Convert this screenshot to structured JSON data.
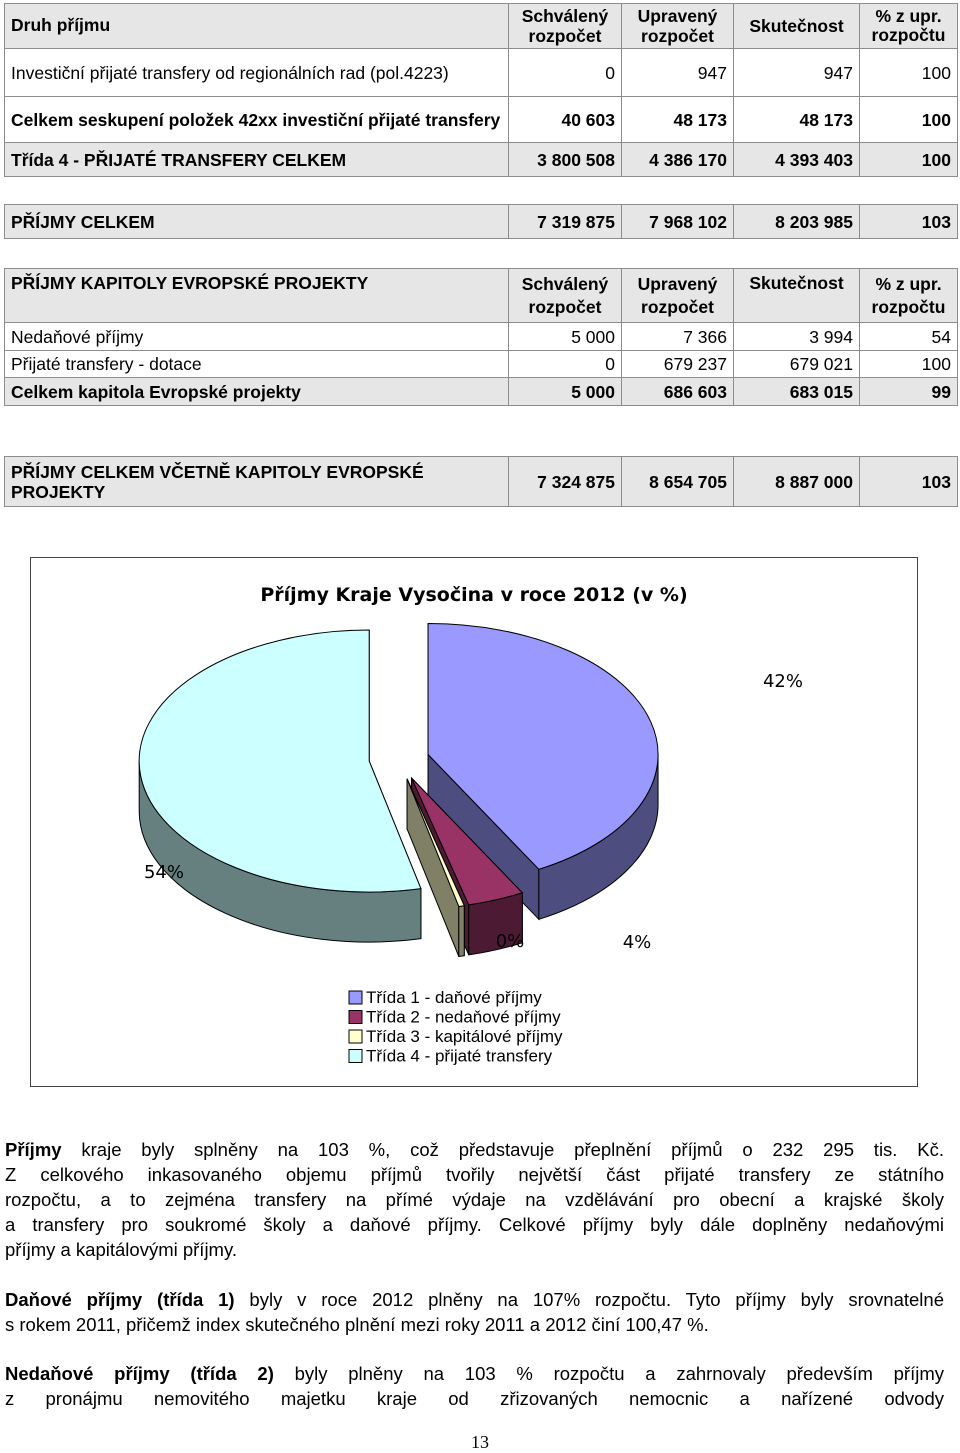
{
  "table1": {
    "head": {
      "label": "Druh příjmu",
      "c2": "Schválený rozpočet",
      "c3": "Upravený rozpočet",
      "c4": "Skutečnost",
      "c5": "% z upr. rozpočtu"
    },
    "rows": [
      {
        "label": "Investiční přijaté transfery od regionálních rad (pol.4223)",
        "c2": "0",
        "c3": "947",
        "c4": "947",
        "c5": "100"
      },
      {
        "label": "Celkem seskupení položek 42xx investiční přijaté transfery",
        "c2": "40 603",
        "c3": "48 173",
        "c4": "48 173",
        "c5": "100"
      },
      {
        "label": "Třída 4 - PŘIJATÉ TRANSFERY CELKEM",
        "c2": "3 800 508",
        "c3": "4 386 170",
        "c4": "4 393 403",
        "c5": "100"
      }
    ]
  },
  "table2": {
    "label": "PŘÍJMY CELKEM",
    "c2": "7 319 875",
    "c3": "7 968 102",
    "c4": "8 203 985",
    "c5": "103"
  },
  "table3": {
    "head": {
      "label": "PŘÍJMY KAPITOLY EVROPSKÉ PROJEKTY",
      "c2": "Schválený rozpočet",
      "c3": "Upravený rozpočet",
      "c4": "Skutečnost",
      "c5": "% z upr. rozpočtu"
    },
    "rows": [
      {
        "label": "Nedaňové příjmy",
        "c2": "5 000",
        "c3": "7 366",
        "c4": "3 994",
        "c5": "54"
      },
      {
        "label": "Přijaté transfery - dotace",
        "c2": "0",
        "c3": "679 237",
        "c4": "679 021",
        "c5": "100"
      },
      {
        "label": "Celkem kapitola Evropské projekty",
        "c2": "5 000",
        "c3": "686 603",
        "c4": "683 015",
        "c5": "99"
      }
    ]
  },
  "table4": {
    "label": "PŘÍJMY CELKEM VČETNĚ KAPITOLY EVROPSKÉ PROJEKTY",
    "c2": "7 324 875",
    "c3": "8 654 705",
    "c4": "8 887 000",
    "c5": "103"
  },
  "chart_data": {
    "type": "pie",
    "title": "Příjmy Kraje Vysočina v roce 2012 (v %)",
    "categories": [
      "Třída 1 - daňové příjmy",
      "Třída 2 - nedaňové příjmy",
      "Třída 3 - kapitálové příjmy",
      "Třída 4 - přijaté transfery"
    ],
    "values": [
      42,
      4,
      0,
      54
    ],
    "data_labels": [
      "42%",
      "4%",
      "0%",
      "54%"
    ],
    "colors": [
      "#9999ff",
      "#993366",
      "#ffffcc",
      "#ccffff"
    ],
    "side_colors": [
      "#4d4d80",
      "#4d1a33",
      "#808066",
      "#668080"
    ],
    "legend": "bottom"
  },
  "paragraphs": {
    "p1": {
      "bold": "Příjmy",
      "lines": [
        " kraje byly splněny na 103 %, což představuje přeplnění příjmů o 232 295 tis. Kč.",
        "Z celkového inkasovaného objemu příjmů tvořily největší část přijaté transfery ze státního",
        "rozpočtu, a to zejména transfery na přímé výdaje na vzdělávání pro obecní a krajské školy",
        "a transfery pro soukromé školy a daňové příjmy. Celkové příjmy byly dále doplněny nedaňovými",
        "příjmy a kapitálovými příjmy."
      ]
    },
    "p2": {
      "bold": "Daňové příjmy (třída 1)",
      "lines": [
        " byly v roce 2012 plněny na 107% rozpočtu. Tyto příjmy byly srovnatelné",
        "s rokem 2011, přičemž index skutečného plnění mezi roky 2011 a 2012 činí 100,47 %."
      ]
    },
    "p3": {
      "bold": "Nedaňové příjmy (třída 2)",
      "lines": [
        " byly plněny na 103 % rozpočtu a zahrnovaly především příjmy",
        "z pronájmu nemovitého majetku kraje od zřizovaných nemocnic a nařízené odvody"
      ]
    }
  },
  "page_number": "13"
}
